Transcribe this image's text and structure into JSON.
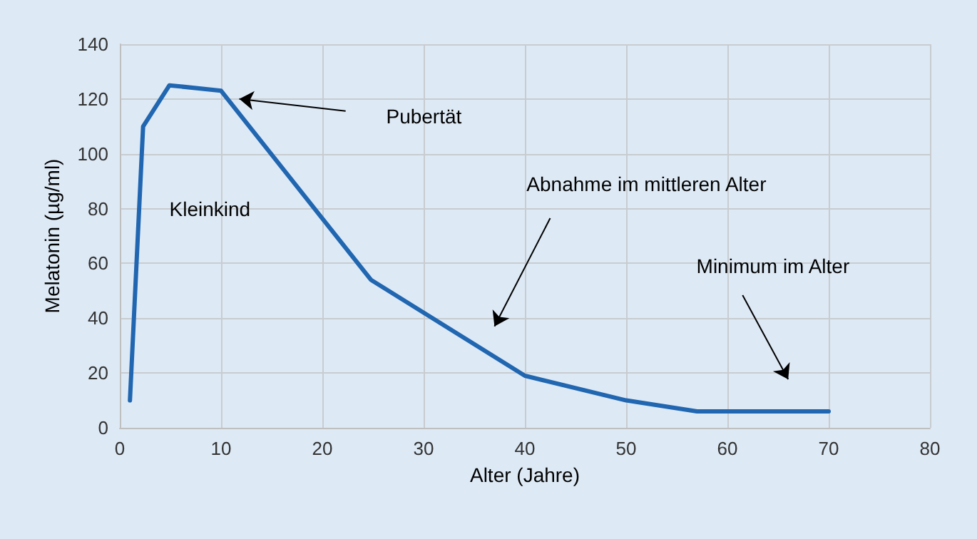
{
  "chart_data": {
    "type": "line",
    "xlabel": "Alter (Jahre)",
    "ylabel": "Melatonin (µg/ml)",
    "x": [
      1,
      2.3,
      4.9,
      10,
      24.8,
      40,
      50,
      57,
      70
    ],
    "series": [
      {
        "color": "#2066b0",
        "values": [
          10,
          110,
          125,
          123,
          54,
          19,
          10,
          6,
          6
        ]
      }
    ],
    "xlim": [
      0,
      80
    ],
    "xticks": [
      0,
      10,
      20,
      30,
      40,
      50,
      60,
      70,
      80
    ],
    "ylim": [
      0,
      140
    ],
    "yticks": [
      0,
      20,
      40,
      60,
      80,
      100,
      120,
      140
    ],
    "grid": true,
    "marker": "none",
    "line_style": "solid",
    "annotations": [
      "Pubertät",
      "Abnahme im mittleren Alter",
      "Minimum im Alter",
      "Kleinkind"
    ]
  }
}
